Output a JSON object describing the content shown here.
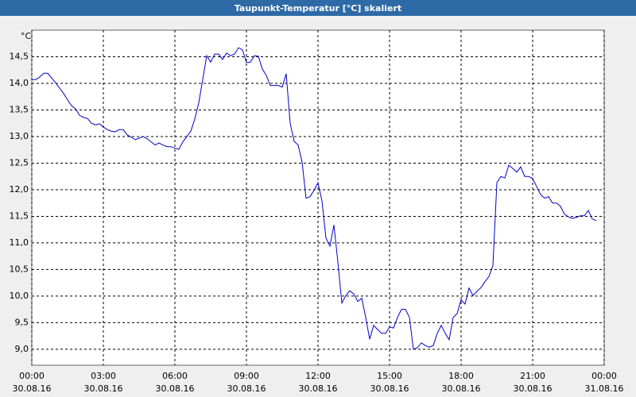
{
  "chart_data": {
    "type": "line",
    "title": "Taupunkt-Temperatur [°C] skaliert",
    "y_unit": "°C",
    "x": [
      0,
      10,
      20,
      30,
      40,
      50,
      60,
      70,
      80,
      90,
      100,
      110,
      120,
      130,
      140,
      150,
      160,
      170,
      180,
      190,
      200,
      210,
      220,
      230,
      240,
      250,
      260,
      270,
      280,
      290,
      300,
      310,
      320,
      330,
      340,
      350,
      360,
      370,
      380,
      390,
      400,
      410,
      420,
      430,
      440,
      450,
      460,
      470,
      480,
      490,
      500,
      510,
      520,
      530,
      540,
      550,
      560,
      570,
      580,
      590,
      600,
      610,
      620,
      630,
      640,
      650,
      660,
      670,
      680,
      690,
      700,
      710,
      720,
      730,
      740,
      750,
      760,
      770,
      780,
      790,
      800,
      810,
      820,
      830,
      840,
      850,
      860,
      870,
      880,
      890,
      900,
      910,
      920,
      930,
      940,
      950,
      960,
      970,
      980,
      990,
      1000,
      1010,
      1020,
      1030,
      1040,
      1050,
      1060,
      1070,
      1080,
      1090,
      1100,
      1110,
      1120,
      1130,
      1140,
      1150,
      1160,
      1170,
      1180,
      1190,
      1200,
      1210,
      1220,
      1230,
      1240,
      1250,
      1260,
      1270,
      1280,
      1290,
      1300,
      1310,
      1320,
      1330,
      1340,
      1350,
      1360,
      1370,
      1380,
      1390,
      1400,
      1410,
      1420
    ],
    "series": [
      {
        "color": "#0000c8",
        "values": [
          14.07,
          14.07,
          14.12,
          14.19,
          14.19,
          14.1,
          14.01,
          13.91,
          13.81,
          13.69,
          13.58,
          13.52,
          13.4,
          13.36,
          13.34,
          13.25,
          13.22,
          13.24,
          13.18,
          13.13,
          13.1,
          13.09,
          13.13,
          13.13,
          13.03,
          12.99,
          12.94,
          12.97,
          13.0,
          12.96,
          12.9,
          12.84,
          12.88,
          12.84,
          12.81,
          12.81,
          12.78,
          12.76,
          12.9,
          13.0,
          13.1,
          13.33,
          13.63,
          14.07,
          14.52,
          14.4,
          14.55,
          14.55,
          14.45,
          14.57,
          14.52,
          14.55,
          14.67,
          14.63,
          14.39,
          14.4,
          14.52,
          14.51,
          14.27,
          14.15,
          13.96,
          13.96,
          13.96,
          13.93,
          14.18,
          13.25,
          12.91,
          12.84,
          12.52,
          11.84,
          11.87,
          11.99,
          12.13,
          11.79,
          11.09,
          10.94,
          11.34,
          10.64,
          9.87,
          10.01,
          10.1,
          10.04,
          9.9,
          9.96,
          9.6,
          9.19,
          9.45,
          9.37,
          9.3,
          9.3,
          9.42,
          9.4,
          9.6,
          9.75,
          9.75,
          9.6,
          9.0,
          9.03,
          9.12,
          9.07,
          9.04,
          9.07,
          9.3,
          9.45,
          9.3,
          9.18,
          9.6,
          9.67,
          9.93,
          9.85,
          10.15,
          10.01,
          10.09,
          10.16,
          10.27,
          10.37,
          10.57,
          12.13,
          12.25,
          12.22,
          12.46,
          12.4,
          12.33,
          12.43,
          12.25,
          12.25,
          12.21,
          12.06,
          11.91,
          11.84,
          11.87,
          11.75,
          11.75,
          11.69,
          11.54,
          11.49,
          11.46,
          11.48,
          11.51,
          11.51,
          11.61,
          11.45,
          11.42
        ]
      }
    ],
    "xlim": [
      0,
      1440
    ],
    "xticks": [
      {
        "value": 0,
        "label": "00:00"
      },
      {
        "value": 180,
        "label": "03:00"
      },
      {
        "value": 360,
        "label": "06:00"
      },
      {
        "value": 540,
        "label": "09:00"
      },
      {
        "value": 720,
        "label": "12:00"
      },
      {
        "value": 900,
        "label": "15:00"
      },
      {
        "value": 1080,
        "label": "18:00"
      },
      {
        "value": 1260,
        "label": "21:00"
      },
      {
        "value": 1440,
        "label": "00:00"
      }
    ],
    "xtick_dates": [
      "30.08.16",
      "30.08.16",
      "30.08.16",
      "30.08.16",
      "30.08.16",
      "30.08.16",
      "30.08.16",
      "30.08.16",
      "31.08.16"
    ],
    "ylim": [
      8.7,
      15.0
    ],
    "yticks": [
      {
        "value": 9.0,
        "label": "9,0"
      },
      {
        "value": 9.5,
        "label": "9,5"
      },
      {
        "value": 10.0,
        "label": "10,0"
      },
      {
        "value": 10.5,
        "label": "10,5"
      },
      {
        "value": 11.0,
        "label": "11,0"
      },
      {
        "value": 11.5,
        "label": "11,5"
      },
      {
        "value": 12.0,
        "label": "12,0"
      },
      {
        "value": 12.5,
        "label": "12,5"
      },
      {
        "value": 13.0,
        "label": "13,0"
      },
      {
        "value": 13.5,
        "label": "13,5"
      },
      {
        "value": 14.0,
        "label": "14,0"
      },
      {
        "value": 14.5,
        "label": "14,5"
      }
    ],
    "grid": true
  }
}
